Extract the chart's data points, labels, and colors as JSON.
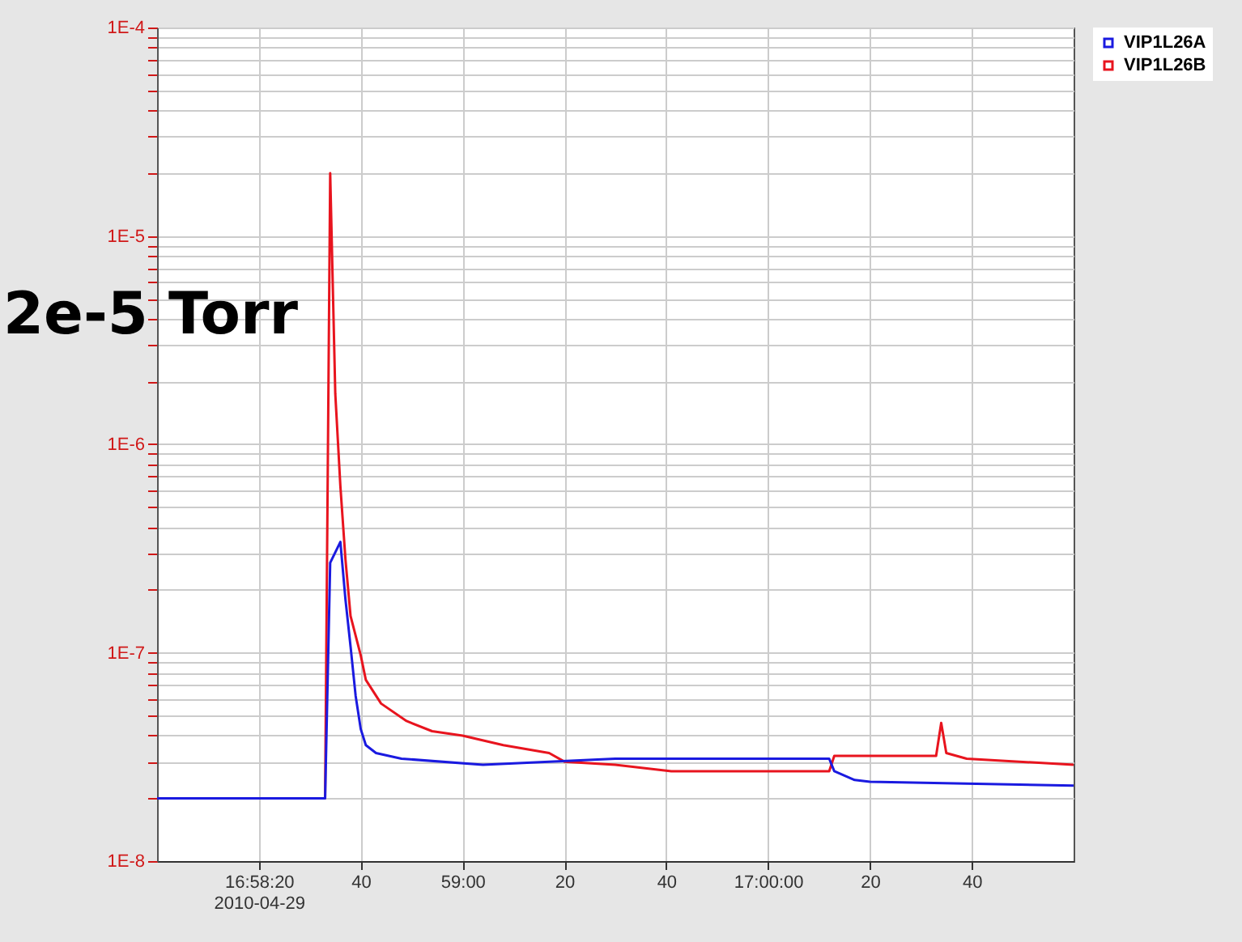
{
  "chart_data": {
    "type": "line",
    "annotations": [
      "2e-5 Torr"
    ],
    "log": "y",
    "grid": true,
    "legend": "top right",
    "marker": "none",
    "line_style": "solid",
    "xlim": [
      "2010-04-29T16:58:00",
      "2010-04-29T17:01:00"
    ],
    "xticks": [
      {
        "value": "2010-04-29T16:58:20",
        "label": "16:58:20\n2010-04-29"
      },
      {
        "value": "2010-04-29T16:58:40",
        "label": "40"
      },
      {
        "value": "2010-04-29T16:59:00",
        "label": "59:00"
      },
      {
        "value": "2010-04-29T16:59:20",
        "label": "20"
      },
      {
        "value": "2010-04-29T16:59:40",
        "label": "40"
      },
      {
        "value": "2010-04-29T17:00:00",
        "label": "17:00:00"
      },
      {
        "value": "2010-04-29T17:00:20",
        "label": "20"
      },
      {
        "value": "2010-04-29T17:00:40",
        "label": "40"
      }
    ],
    "ylim": [
      1e-08,
      0.0001
    ],
    "yticks": [
      {
        "value": 1e-08,
        "label": "1E-8"
      },
      {
        "value": 2e-08,
        "label": null
      },
      {
        "value": 3e-08,
        "label": null
      },
      {
        "value": 4e-08,
        "label": null
      },
      {
        "value": 5e-08,
        "label": null
      },
      {
        "value": 6e-08,
        "label": null
      },
      {
        "value": 7e-08,
        "label": null
      },
      {
        "value": 8e-08,
        "label": null
      },
      {
        "value": 9e-08,
        "label": null
      },
      {
        "value": 1e-07,
        "label": "1E-7"
      },
      {
        "value": 2e-07,
        "label": null
      },
      {
        "value": 3e-07,
        "label": null
      },
      {
        "value": 4e-07,
        "label": null
      },
      {
        "value": 5e-07,
        "label": null
      },
      {
        "value": 6e-07,
        "label": null
      },
      {
        "value": 7e-07,
        "label": null
      },
      {
        "value": 8e-07,
        "label": null
      },
      {
        "value": 9e-07,
        "label": null
      },
      {
        "value": 1e-06,
        "label": "1E-6"
      },
      {
        "value": 2e-06,
        "label": null
      },
      {
        "value": 3e-06,
        "label": null
      },
      {
        "value": 4e-06,
        "label": null
      },
      {
        "value": 5e-06,
        "label": null
      },
      {
        "value": 6e-06,
        "label": null
      },
      {
        "value": 7e-06,
        "label": null
      },
      {
        "value": 8e-06,
        "label": null
      },
      {
        "value": 9e-06,
        "label": null
      },
      {
        "value": 1e-05,
        "label": "1E-5"
      },
      {
        "value": 2e-05,
        "label": null
      },
      {
        "value": 3e-05,
        "label": null
      },
      {
        "value": 4e-05,
        "label": null
      },
      {
        "value": 5e-05,
        "label": null
      },
      {
        "value": 6e-05,
        "label": null
      },
      {
        "value": 7e-05,
        "label": null
      },
      {
        "value": 8e-05,
        "label": null
      },
      {
        "value": 9e-05,
        "label": null
      },
      {
        "value": 0.0001,
        "label": "1E-4"
      }
    ],
    "series": [
      {
        "name": "VIP1L26A",
        "color": "#1a1ae0",
        "x": [
          "2010-04-29T16:58:00",
          "2010-04-29T16:58:33",
          "2010-04-29T16:58:34",
          "2010-04-29T16:58:36",
          "2010-04-29T16:58:37",
          "2010-04-29T16:58:38",
          "2010-04-29T16:58:39",
          "2010-04-29T16:58:40",
          "2010-04-29T16:58:41",
          "2010-04-29T16:58:43",
          "2010-04-29T16:58:48",
          "2010-04-29T16:59:04",
          "2010-04-29T16:59:30",
          "2010-04-29T17:00:12",
          "2010-04-29T17:00:13",
          "2010-04-29T17:00:17",
          "2010-04-29T17:00:20",
          "2010-04-29T17:01:00"
        ],
        "values": [
          2e-08,
          2e-08,
          2.7e-07,
          3.4e-07,
          1.8e-07,
          1.07e-07,
          6.2e-08,
          4.3e-08,
          3.6e-08,
          3.3e-08,
          3.1e-08,
          2.9e-08,
          3.1e-08,
          3.1e-08,
          2.7e-08,
          2.45e-08,
          2.4e-08,
          2.3e-08
        ]
      },
      {
        "name": "VIP1L26B",
        "color": "#e8141e",
        "x": [
          "2010-04-29T16:58:00",
          "2010-04-29T16:58:33",
          "2010-04-29T16:58:34",
          "2010-04-29T16:58:35",
          "2010-04-29T16:58:36",
          "2010-04-29T16:58:37",
          "2010-04-29T16:58:38",
          "2010-04-29T16:58:40",
          "2010-04-29T16:58:41",
          "2010-04-29T16:58:44",
          "2010-04-29T16:58:49",
          "2010-04-29T16:58:54",
          "2010-04-29T16:59:00",
          "2010-04-29T16:59:08",
          "2010-04-29T16:59:17",
          "2010-04-29T16:59:20",
          "2010-04-29T16:59:30",
          "2010-04-29T16:59:41",
          "2010-04-29T16:59:54",
          "2010-04-29T17:00:12",
          "2010-04-29T17:00:13",
          "2010-04-29T17:00:33",
          "2010-04-29T17:00:34",
          "2010-04-29T17:00:35",
          "2010-04-29T17:00:39",
          "2010-04-29T17:01:00"
        ],
        "values": [
          2e-08,
          2e-08,
          2e-05,
          1.75e-06,
          6.3e-07,
          2.8e-07,
          1.5e-07,
          9.7e-08,
          7.4e-08,
          5.7e-08,
          4.7e-08,
          4.2e-08,
          4e-08,
          3.6e-08,
          3.3e-08,
          3e-08,
          2.9e-08,
          2.7e-08,
          2.7e-08,
          2.7e-08,
          3.2e-08,
          3.2e-08,
          4.6e-08,
          3.3e-08,
          3.1e-08,
          2.9e-08
        ]
      }
    ]
  }
}
